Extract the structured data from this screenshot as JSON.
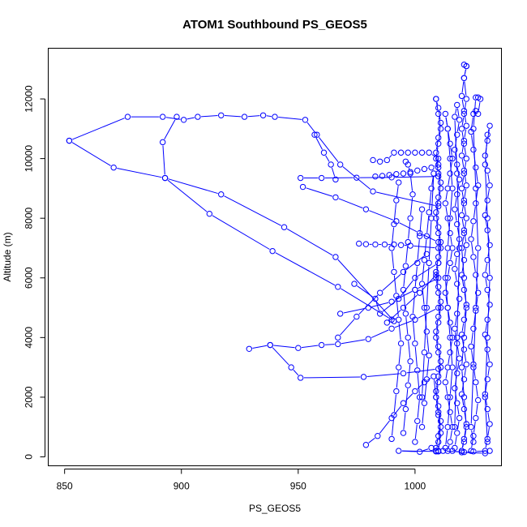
{
  "chart_data": {
    "type": "line",
    "title": "ATOM1 Southbound PS_GEOS5",
    "xlabel": "PS_GEOS5",
    "ylabel": "Altitude (m)",
    "xlim": [
      843,
      1037
    ],
    "ylim": [
      -300,
      13700
    ],
    "x_ticks": [
      850,
      900,
      950,
      1000
    ],
    "x_tick_labels": [
      "850",
      "900",
      "950",
      "1000"
    ],
    "y_ticks": [
      0,
      2000,
      4000,
      6000,
      8000,
      10000,
      12000
    ],
    "y_tick_labels": [
      "0",
      "2000",
      "4000",
      "6000",
      "8000",
      "10000",
      "12000"
    ],
    "grid": false,
    "series_color": "#0000ff",
    "series": [
      {
        "x": [
          1016,
          1020,
          1030,
          1032,
          1025,
          1021,
          1012,
          1010,
          993,
          1002,
          1007,
          1009
        ],
        "y": [
          200,
          150,
          120,
          200,
          180,
          160,
          200,
          180,
          200,
          170,
          300,
          180
        ]
      },
      {
        "x": [
          979,
          984,
          990,
          995,
          1000,
          1004,
          1008,
          1009,
          1010,
          1011,
          1010,
          1009,
          1010,
          1011,
          1010,
          1009,
          1010,
          1011,
          1010,
          1009,
          1010,
          1011,
          1010,
          1009,
          1010,
          1011,
          1010,
          1009,
          1010,
          1011,
          1010,
          1009,
          1010,
          1011,
          1010,
          1009
        ],
        "y": [
          400,
          700,
          1300,
          1800,
          2200,
          2500,
          2700,
          2000,
          1400,
          800,
          200,
          300,
          700,
          1200,
          1700,
          2200,
          2700,
          3200,
          3700,
          4200,
          4700,
          5200,
          5700,
          6200,
          6700,
          7200,
          7700,
          8200,
          8700,
          9200,
          9700,
          10200,
          10700,
          11200,
          11700,
          12000
        ]
      },
      {
        "x": [
          1009,
          1010,
          1011,
          1010,
          1009,
          1010,
          1011,
          1010,
          1009,
          1010,
          1011,
          1010,
          1009,
          1010,
          1011,
          1010,
          1009,
          1010,
          1011,
          1010,
          1009,
          1010,
          1011,
          1010,
          1009
        ],
        "y": [
          12000,
          11500,
          11000,
          10500,
          10000,
          9500,
          9000,
          8500,
          8000,
          7500,
          7000,
          6500,
          6000,
          5500,
          5000,
          4500,
          4000,
          3500,
          3000,
          2500,
          2000,
          1500,
          1000,
          500,
          200
        ]
      },
      {
        "x": [
          1014,
          1015,
          1016,
          1015,
          1014,
          1013,
          1014,
          1015,
          1016,
          1015,
          1014,
          1013,
          1014,
          1015,
          1016,
          1015,
          1014,
          1013,
          1014,
          1015,
          1016,
          1015,
          1014,
          1013,
          1014,
          1015,
          1016,
          1015,
          1014,
          1013,
          1014,
          1015,
          1016,
          1015,
          1014,
          1013
        ],
        "y": [
          200,
          500,
          1000,
          1500,
          2000,
          2500,
          3000,
          3500,
          4000,
          4500,
          5000,
          5500,
          6000,
          6500,
          7000,
          7500,
          8000,
          8500,
          9000,
          9500,
          10000,
          10500,
          11000,
          11500,
          11000,
          10000,
          9000,
          8000,
          7000,
          6000,
          5000,
          4000,
          3000,
          2000,
          1000,
          300
        ]
      },
      {
        "x": [
          1017,
          1018,
          1019,
          1018,
          1017,
          1018,
          1019,
          1018,
          1017,
          1018,
          1019,
          1018,
          1017,
          1018,
          1019,
          1018,
          1017,
          1018,
          1019,
          1018,
          1017,
          1018,
          1019,
          1018,
          1017,
          1018,
          1019,
          1018,
          1017
        ],
        "y": [
          300,
          800,
          1300,
          1800,
          2300,
          2800,
          3300,
          3800,
          4300,
          4800,
          5300,
          5800,
          6300,
          6800,
          7300,
          7800,
          8300,
          8800,
          9300,
          9800,
          10300,
          10800,
          11300,
          11800,
          11400,
          9500,
          7000,
          4000,
          1000
        ]
      },
      {
        "x": [
          1020,
          1021,
          1022,
          1021,
          1020,
          1021,
          1022,
          1021,
          1020,
          1021,
          1022,
          1021,
          1020,
          1021,
          1022,
          1021,
          1020,
          1021,
          1022,
          1021,
          1020,
          1021,
          1022,
          1021,
          1020,
          1021,
          1022,
          1021,
          1022,
          1021,
          1022,
          1021,
          1020,
          1021,
          1022,
          1021,
          1020,
          1021,
          1022,
          1021,
          1020,
          1021,
          1022,
          1021,
          1020,
          1021,
          1022,
          1021,
          1020
        ],
        "y": [
          200,
          600,
          1100,
          1600,
          2100,
          2600,
          3100,
          3600,
          4100,
          4600,
          5100,
          5600,
          6100,
          6600,
          7100,
          7600,
          8100,
          8600,
          9100,
          9600,
          10100,
          10600,
          11100,
          11600,
          12100,
          12700,
          13100,
          13150,
          13100,
          12700,
          12000,
          11500,
          11000,
          10500,
          10000,
          9500,
          9000,
          8500,
          8000,
          7500,
          7000,
          6000,
          5000,
          4000,
          3000,
          2000,
          1000,
          500,
          200
        ]
      },
      {
        "x": [
          1024,
          1025,
          1026,
          1027,
          1026,
          1025,
          1024,
          1025,
          1026,
          1027,
          1026,
          1025,
          1024,
          1025,
          1026,
          1027,
          1026,
          1025,
          1024,
          1025,
          1026,
          1027,
          1028,
          1027,
          1026,
          1025,
          1026,
          1027,
          1026,
          1025,
          1024,
          1025
        ],
        "y": [
          200,
          700,
          1300,
          1900,
          2500,
          3100,
          3700,
          4300,
          4900,
          5500,
          6100,
          6700,
          7300,
          7900,
          8500,
          9100,
          9700,
          10300,
          10900,
          11500,
          11600,
          11500,
          12000,
          12050,
          12050,
          11000,
          9000,
          7000,
          5000,
          3000,
          1000,
          500
        ]
      },
      {
        "x": [
          1030,
          1031,
          1032,
          1031,
          1030,
          1031,
          1032,
          1031,
          1030,
          1031,
          1032,
          1031,
          1030,
          1031,
          1032,
          1031,
          1030,
          1031,
          1032,
          1031,
          1030,
          1031,
          1032,
          1031,
          1030,
          1031,
          1032,
          1031,
          1030,
          1031
        ],
        "y": [
          200,
          600,
          1100,
          1600,
          2100,
          2600,
          3100,
          3600,
          4100,
          4600,
          5100,
          5600,
          6100,
          6600,
          7100,
          7600,
          8100,
          8600,
          9100,
          9600,
          10100,
          10600,
          11100,
          10800,
          9800,
          8000,
          6000,
          4000,
          2000,
          500
        ]
      },
      {
        "x": [
          1003,
          1004,
          1005,
          1006,
          1005,
          1004,
          1003,
          1004,
          1005,
          1006,
          1007,
          1008,
          1007,
          1006,
          1005,
          1004,
          1003
        ],
        "y": [
          1000,
          1800,
          2600,
          3400,
          4200,
          5000,
          5800,
          6600,
          7400,
          8200,
          9000,
          9500,
          8000,
          6500,
          5000,
          3500,
          2000
        ]
      },
      {
        "x": [
          995,
          996,
          997,
          998,
          997,
          996,
          995,
          996,
          997,
          998,
          999,
          998,
          997,
          996
        ],
        "y": [
          800,
          1600,
          2400,
          3200,
          4000,
          4800,
          5600,
          6400,
          7200,
          8000,
          8800,
          9500,
          9800,
          9900
        ]
      },
      {
        "x": [
          990,
          991,
          992,
          993,
          994,
          993,
          992,
          991,
          990,
          991,
          992,
          993
        ],
        "y": [
          600,
          1400,
          2200,
          3000,
          3800,
          4600,
          5400,
          6200,
          7000,
          7800,
          8600,
          9200
        ]
      },
      {
        "x": [
          1000,
          1001,
          1002,
          1001,
          1000,
          999,
          1000,
          1001,
          1002,
          1003
        ],
        "y": [
          500,
          1200,
          2000,
          2900,
          3800,
          4700,
          5600,
          6500,
          7400,
          8300
        ]
      },
      {
        "x": [
          852,
          877,
          892,
          901,
          907,
          917,
          927,
          935,
          940,
          953,
          958,
          968,
          982,
          1010
        ],
        "y": [
          10600,
          11400,
          11400,
          11300,
          11400,
          11450,
          11400,
          11450,
          11400,
          11300,
          10800,
          9800,
          8900,
          8400
        ]
      },
      {
        "x": [
          852,
          871,
          893,
          917,
          944,
          966,
          991
        ],
        "y": [
          10600,
          9700,
          9350,
          8800,
          7700,
          6700,
          4550
        ]
      },
      {
        "x": [
          898,
          892,
          893,
          912,
          939,
          967,
          990
        ],
        "y": [
          11400,
          10550,
          9350,
          8150,
          6900,
          5700,
          4600
        ]
      },
      {
        "x": [
          982,
          985,
          988,
          991,
          994,
          997,
          1000,
          1003,
          1006,
          1010
        ],
        "y": [
          9950,
          9900,
          9950,
          10200,
          10200,
          10200,
          10200,
          10200,
          10200,
          10000
        ]
      },
      {
        "x": [
          983,
          986,
          989,
          992,
          995,
          998,
          1001,
          1004,
          1007,
          1010
        ],
        "y": [
          9400,
          9420,
          9450,
          9480,
          9500,
          9550,
          9600,
          9650,
          9700,
          9800
        ]
      },
      {
        "x": [
          951,
          960,
          975,
          990,
          1010
        ],
        "y": [
          9350,
          9350,
          9360,
          9370,
          9400
        ]
      },
      {
        "x": [
          952,
          966,
          979,
          992,
          1002,
          1010
        ],
        "y": [
          9050,
          8700,
          8300,
          7900,
          7500,
          7200
        ]
      },
      {
        "x": [
          976,
          979,
          983,
          987,
          991,
          994,
          998,
          1010
        ],
        "y": [
          7150,
          7130,
          7120,
          7120,
          7120,
          7100,
          7080,
          7000
        ]
      },
      {
        "x": [
          929,
          938,
          950,
          960,
          967,
          980,
          990,
          1000,
          1010
        ],
        "y": [
          3620,
          3750,
          3650,
          3750,
          3780,
          3950,
          4300,
          4600,
          5000
        ]
      },
      {
        "x": [
          938,
          947,
          951,
          978,
          995,
          1010
        ],
        "y": [
          3750,
          3000,
          2650,
          2680,
          2800,
          2950
        ]
      },
      {
        "x": [
          974,
          983,
          985,
          993,
          1000,
          1010
        ],
        "y": [
          5800,
          5300,
          4800,
          5300,
          6000,
          6500
        ]
      },
      {
        "x": [
          968,
          980,
          990,
          1000,
          1010
        ],
        "y": [
          4800,
          5000,
          5200,
          5600,
          6000
        ]
      },
      {
        "x": [
          967,
          975,
          985,
          995,
          1005
        ],
        "y": [
          4000,
          4700,
          5500,
          6200,
          6800
        ]
      },
      {
        "x": [
          988,
          995,
          1002,
          1009
        ],
        "y": [
          4500,
          5000,
          5500,
          6100
        ]
      },
      {
        "x": [
          957,
          961,
          964,
          966
        ],
        "y": [
          10800,
          10200,
          9800,
          9300
        ]
      }
    ]
  }
}
